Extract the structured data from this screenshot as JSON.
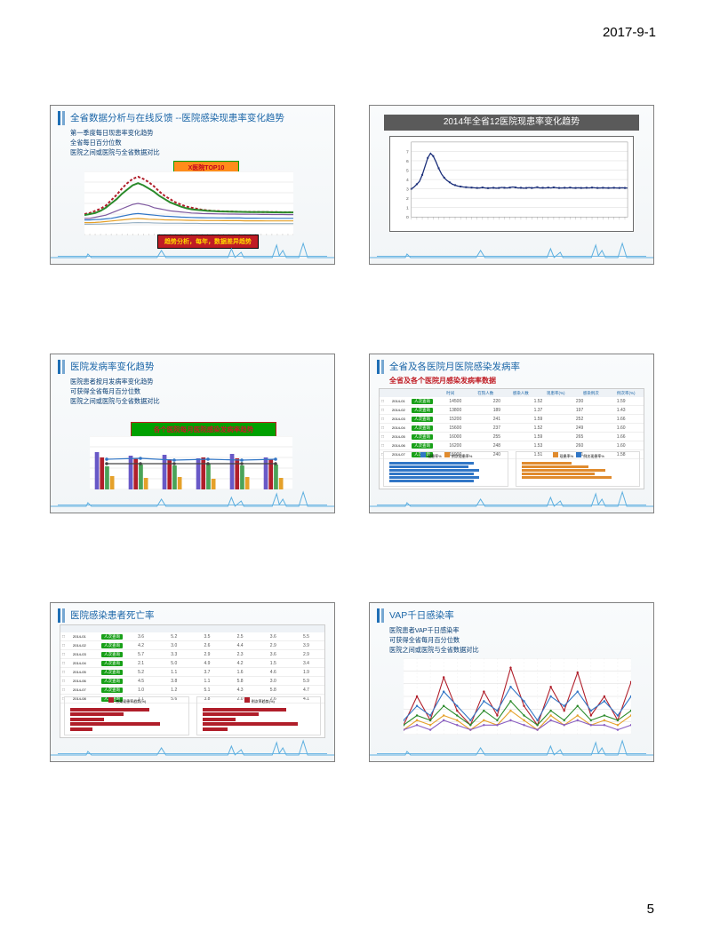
{
  "page": {
    "date": "2017-9-1",
    "number": "5"
  },
  "colors": {
    "title_blue": "#1b66a8",
    "bullet_blue": "#0a3f75",
    "skyline": "#5eb0e0",
    "dark_banner": "#5a5a5a",
    "series_navy": "#1b2f7a",
    "grid": "#d0d0d0",
    "bar_purple": "#6959c7",
    "bar_orange": "#e08b2e",
    "bar_red": "#b01e2a",
    "bar_blue": "#3176c6",
    "bar_teal": "#25a69a",
    "green_pill": "#18a018"
  },
  "slides": {
    "s1": {
      "title": "全省数据分析与在线反馈 --医院感染现患率变化趋势",
      "bullets": [
        "第一季度每日现患率变化趋势",
        "全省每日百分位数",
        "医院之间或医院与全省数据对比"
      ],
      "badge1": "X医院TOP10",
      "badge2": "趋势分析，每年，数据差异趋势",
      "chart": {
        "type": "line",
        "ylim": [
          -1,
          5
        ],
        "x_points": 40,
        "series": [
          {
            "color": "#b01e2a",
            "width": 2,
            "dash": "3 2",
            "values": [
              1.0,
              1.1,
              1.3,
              1.5,
              1.8,
              2.3,
              2.8,
              3.4,
              3.9,
              4.3,
              4.5,
              4.3,
              4.0,
              3.6,
              3.1,
              2.7,
              2.4,
              2.1,
              1.9,
              1.7,
              1.6,
              1.5,
              1.4,
              1.35,
              1.3,
              1.28,
              1.25,
              1.24,
              1.23,
              1.22,
              1.21,
              1.2,
              1.2,
              1.19,
              1.19,
              1.18,
              1.18,
              1.17,
              1.17,
              1.17
            ]
          },
          {
            "color": "#2a8a2a",
            "width": 2,
            "values": [
              0.9,
              1.0,
              1.1,
              1.3,
              1.6,
              2.0,
              2.4,
              2.9,
              3.3,
              3.7,
              3.9,
              3.7,
              3.4,
              3.1,
              2.7,
              2.4,
              2.1,
              1.9,
              1.7,
              1.55,
              1.45,
              1.4,
              1.35,
              1.3,
              1.28,
              1.25,
              1.24,
              1.23,
              1.22,
              1.21,
              1.2,
              1.19,
              1.19,
              1.18,
              1.18,
              1.17,
              1.17,
              1.16,
              1.16,
              1.16
            ]
          },
          {
            "color": "#7f5aa0",
            "width": 1.2,
            "values": [
              0.6,
              0.6,
              0.7,
              0.8,
              0.9,
              1.1,
              1.3,
              1.5,
              1.7,
              1.9,
              2.0,
              1.9,
              1.8,
              1.6,
              1.5,
              1.4,
              1.3,
              1.25,
              1.2,
              1.15,
              1.1,
              1.08,
              1.05,
              1.04,
              1.03,
              1.02,
              1.01,
              1.0,
              1.0,
              0.99,
              0.99,
              0.98,
              0.98,
              0.97,
              0.97,
              0.96,
              0.96,
              0.96,
              0.95,
              0.95
            ]
          },
          {
            "color": "#3176c6",
            "width": 1.2,
            "values": [
              0.45,
              0.45,
              0.48,
              0.5,
              0.55,
              0.6,
              0.7,
              0.8,
              0.9,
              1.0,
              1.05,
              1.0,
              0.95,
              0.9,
              0.85,
              0.8,
              0.78,
              0.75,
              0.72,
              0.7,
              0.68,
              0.67,
              0.66,
              0.65,
              0.65,
              0.64,
              0.64,
              0.63,
              0.63,
              0.63,
              0.62,
              0.62,
              0.62,
              0.61,
              0.61,
              0.61,
              0.6,
              0.6,
              0.6,
              0.6
            ]
          },
          {
            "color": "#e5a12a",
            "width": 1.2,
            "values": [
              0.2,
              0.2,
              0.22,
              0.25,
              0.3,
              0.35,
              0.4,
              0.45,
              0.5,
              0.55,
              0.58,
              0.55,
              0.52,
              0.5,
              0.48,
              0.46,
              0.45,
              0.44,
              0.43,
              0.42,
              0.41,
              0.4,
              0.4,
              0.39,
              0.39,
              0.39,
              0.38,
              0.38,
              0.38,
              0.38,
              0.37,
              0.37,
              0.37,
              0.37,
              0.36,
              0.36,
              0.36,
              0.36,
              0.36,
              0.36
            ]
          },
          {
            "color": "#8aa6bb",
            "width": 1,
            "values": [
              0.05,
              0.05,
              0.06,
              0.07,
              0.08,
              0.1,
              0.12,
              0.14,
              0.16,
              0.18,
              0.2,
              0.19,
              0.18,
              0.17,
              0.16,
              0.15,
              0.15,
              0.14,
              0.14,
              0.13,
              0.13,
              0.13,
              0.12,
              0.12,
              0.12,
              0.12,
              0.12,
              0.11,
              0.11,
              0.11,
              0.11,
              0.11,
              0.11,
              0.1,
              0.1,
              0.1,
              0.1,
              0.1,
              0.1,
              0.1
            ]
          }
        ]
      }
    },
    "s2": {
      "banner": "2014年全省12医院现患率变化趋势",
      "chart": {
        "type": "line",
        "ylim": [
          0,
          8
        ],
        "yticks": [
          0,
          1,
          2,
          3,
          4,
          5,
          6,
          7
        ],
        "x_points": 80,
        "series_color": "#1b2f7a",
        "values": [
          3.0,
          3.2,
          3.5,
          3.8,
          4.5,
          5.4,
          6.3,
          6.8,
          6.5,
          5.9,
          5.2,
          4.6,
          4.2,
          3.9,
          3.7,
          3.5,
          3.4,
          3.3,
          3.25,
          3.2,
          3.18,
          3.15,
          3.14,
          3.12,
          3.1,
          3.1,
          3.15,
          3.1,
          3.08,
          3.1,
          3.12,
          3.08,
          3.1,
          3.15,
          3.12,
          3.1,
          3.14,
          3.2,
          3.16,
          3.1,
          3.12,
          3.08,
          3.1,
          3.14,
          3.1,
          3.12,
          3.18,
          3.1,
          3.12,
          3.1,
          3.14,
          3.1,
          3.16,
          3.12,
          3.1,
          3.1,
          3.12,
          3.1,
          3.14,
          3.1,
          3.1,
          3.12,
          3.1,
          3.1,
          3.12,
          3.1,
          3.14,
          3.12,
          3.1,
          3.1,
          3.12,
          3.1,
          3.1,
          3.1,
          3.12,
          3.1,
          3.1,
          3.12,
          3.1,
          3.1
        ]
      }
    },
    "s3": {
      "title": "医院发病率变化趋势",
      "bullets": [
        "医院患者按月发病率变化趋势",
        "可获得全省每月百分位数",
        "医院之间或医院与全省数据对比"
      ],
      "badge": "各个医院每月医院感染发病率趋势",
      "chart": {
        "type": "bar+line",
        "months": [
          "1",
          "2",
          "3",
          "4",
          "5",
          "6"
        ],
        "ylim": [
          0,
          6
        ],
        "bar_groups": [
          [
            4.2,
            3.8,
            3.9,
            3.5,
            4.0,
            3.6
          ],
          [
            3.6,
            3.5,
            3.4,
            3.6,
            3.5,
            3.4
          ],
          [
            2.6,
            2.8,
            2.7,
            2.9,
            2.7,
            2.8
          ],
          [
            1.5,
            1.3,
            1.4,
            1.2,
            1.4,
            1.3
          ]
        ],
        "bar_colors": [
          "#6959c7",
          "#b01e2a",
          "#4aa358",
          "#e5a12a"
        ],
        "lines": [
          {
            "color": "#3176c6",
            "values": [
              3.4,
              3.5,
              3.3,
              3.4,
              3.3,
              3.4
            ]
          },
          {
            "color": "#444444",
            "values": [
              2.9,
              2.9,
              2.9,
              2.9,
              2.9,
              2.9
            ]
          }
        ]
      }
    },
    "s4": {
      "title": "全省及各医院月医院感染发病率",
      "subtitle": "全省及各个医院月感染发病率数据",
      "table": {
        "columns": [
          "时间",
          "在院人数",
          "感染人数",
          "现患率(%)",
          "感染例次",
          "例次率(%)"
        ],
        "rows": [
          [
            "2014-01",
            "14500",
            "220",
            "1.52",
            "230",
            "1.59"
          ],
          [
            "2014-02",
            "13800",
            "189",
            "1.37",
            "197",
            "1.43"
          ],
          [
            "2014-03",
            "15200",
            "241",
            "1.59",
            "252",
            "1.66"
          ],
          [
            "2014-04",
            "15600",
            "237",
            "1.52",
            "249",
            "1.60"
          ],
          [
            "2014-05",
            "16000",
            "255",
            "1.59",
            "265",
            "1.66"
          ],
          [
            "2014-06",
            "16200",
            "248",
            "1.53",
            "260",
            "1.60"
          ],
          [
            "2014-07",
            "15900",
            "240",
            "1.51",
            "251",
            "1.58"
          ]
        ],
        "pill_label": "人次查询"
      },
      "mini_left": {
        "legend": [
          "现患率%",
          "例次现患率%"
        ],
        "colors": [
          "#3176c6",
          "#e08b2e"
        ],
        "bars": [
          1.5,
          1.4,
          1.6,
          1.5,
          1.6,
          1.5
        ]
      },
      "mini_right": {
        "legend": [
          "现患率%",
          "例次现患率%"
        ],
        "colors": [
          "#e08b2e",
          "#3176c6"
        ],
        "bars": [
          0.9,
          1.2,
          1.5,
          1.3,
          1.6
        ]
      }
    },
    "s5": {
      "title": "医院感染患者死亡率",
      "table": {
        "pill_label": "人次查询",
        "rows_count": 8
      },
      "mini_left": {
        "label": "感染现患率趋势(%)",
        "color": "#b01e2a",
        "bars": [
          2.8,
          1.9,
          1.2,
          3.2,
          0.8
        ]
      },
      "mini_right": {
        "label": "例次率趋势(%)",
        "color": "#b01e2a",
        "bars": [
          3.0,
          2.0,
          1.2,
          3.4,
          0.9
        ]
      }
    },
    "s6": {
      "title": "VAP千日感染率",
      "bullets": [
        "医院患者VAP千日感染率",
        "可获得全省每月百分位数",
        "医院之间或医院与全省数据对比"
      ],
      "chart": {
        "type": "line",
        "x_points": 18,
        "ylim": [
          0,
          16
        ],
        "series": [
          {
            "color": "#b01e2a",
            "values": [
              2,
              8,
              3,
              12,
              5,
              2,
              9,
              4,
              14,
              6,
              2,
              10,
              5,
              13,
              4,
              8,
              3,
              11
            ]
          },
          {
            "color": "#3176c6",
            "values": [
              3,
              6,
              4,
              9,
              6,
              3,
              7,
              5,
              10,
              7,
              3,
              8,
              6,
              9,
              5,
              7,
              4,
              8
            ]
          },
          {
            "color": "#e5a12a",
            "values": [
              1,
              3,
              2,
              4,
              3,
              1,
              3,
              2,
              5,
              3,
              1,
              4,
              2,
              4,
              2,
              3,
              2,
              4
            ]
          },
          {
            "color": "#2a8a2a",
            "values": [
              2,
              4,
              3,
              6,
              4,
              2,
              5,
              3,
              7,
              4,
              2,
              5,
              3,
              6,
              3,
              4,
              3,
              5
            ]
          },
          {
            "color": "#8a5ec2",
            "values": [
              1,
              2,
              1,
              3,
              2,
              1,
              2,
              2,
              3,
              2,
              1,
              3,
              2,
              3,
              2,
              2,
              1,
              2
            ]
          }
        ]
      }
    }
  }
}
